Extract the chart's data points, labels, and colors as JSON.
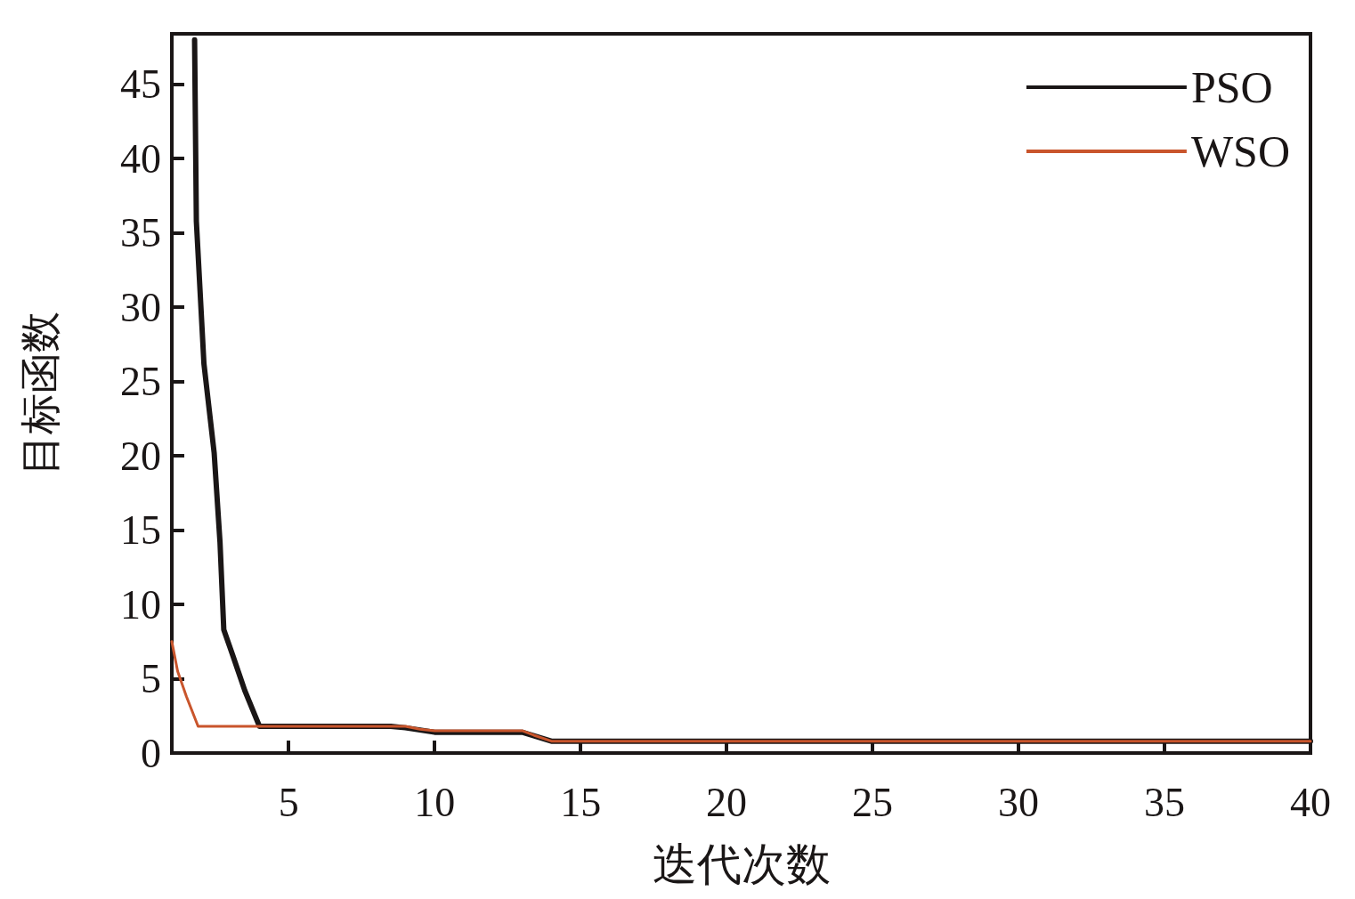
{
  "chart_data": {
    "type": "line",
    "xlabel": "迭代次数",
    "ylabel": "目标函数",
    "xlim": [
      1,
      40
    ],
    "xticks": [
      5,
      10,
      15,
      20,
      25,
      30,
      35,
      40
    ],
    "ylim": [
      0,
      48.4
    ],
    "yticks": [
      0,
      5,
      10,
      15,
      20,
      25,
      30,
      35,
      40,
      45
    ],
    "grid": false,
    "legend": "top right",
    "marker": "none",
    "line_style": "solid",
    "series": [
      {
        "name": "PSO",
        "color": "#1a1616",
        "x": [
          1.78,
          1.84,
          2.1,
          2.45,
          2.65,
          2.78,
          3.1,
          3.5,
          4,
          8.5,
          9,
          10,
          13,
          14,
          15,
          40
        ],
        "values": [
          48,
          35.8,
          26.2,
          20.2,
          14.2,
          8.3,
          6.5,
          4.2,
          1.8,
          1.8,
          1.7,
          1.4,
          1.4,
          0.8,
          0.8,
          0.8
        ]
      },
      {
        "name": "WSO",
        "color": "#c9552c",
        "x": [
          1,
          1.2,
          1.5,
          1.9,
          8,
          9,
          9.5,
          10,
          13,
          13.4,
          14,
          15,
          40
        ],
        "values": [
          7.5,
          5.5,
          3.8,
          1.8,
          1.8,
          1.8,
          1.6,
          1.5,
          1.5,
          1.2,
          0.8,
          0.8,
          0.8
        ]
      }
    ]
  }
}
